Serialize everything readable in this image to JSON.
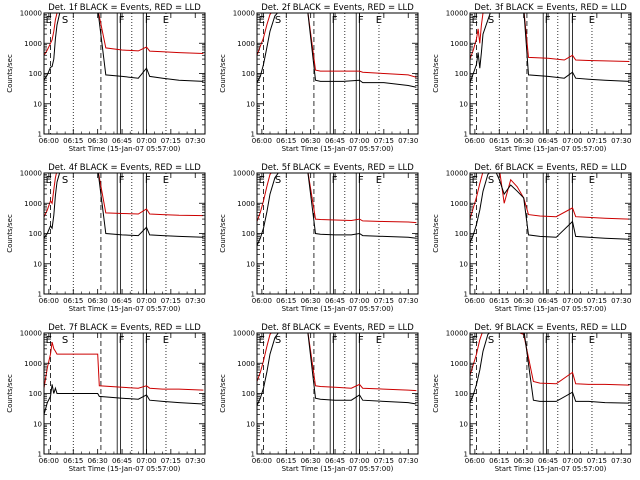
{
  "figure": {
    "x_tick_labels": [
      "06:00",
      "06:15",
      "06:30",
      "06:45",
      "07:00",
      "07:15",
      "07:30"
    ],
    "y_tick_labels": [
      "1",
      "10",
      "100",
      "1000",
      "10000"
    ],
    "ylabel": "Counts/sec",
    "xlabel": "Start Time (15-Jan-07 05:57:00)"
  },
  "chart_data": [
    {
      "type": "line",
      "title": "Det. 1f BLACK = Events, RED = LLD",
      "xlabel": "Start Time (15-Jan-07 05:57:00)",
      "ylabel": "Counts/sec",
      "y_scale": "log",
      "ylim": [
        1,
        10000
      ],
      "xlim": [
        "05:57",
        "07:36"
      ],
      "markers": [
        "E",
        "S",
        "F",
        "F",
        "E"
      ],
      "series": [
        {
          "name": "Events",
          "color": "#000000",
          "x": [
            "05:57",
            "05:59",
            "06:01",
            "06:02",
            "06:03",
            "06:04",
            "06:05",
            "06:07",
            "06:10",
            "06:15",
            "06:20",
            "06:25",
            "06:30",
            "06:35",
            "06:45",
            "06:55",
            "07:00",
            "07:02",
            "07:10",
            "07:20",
            "07:35"
          ],
          "y": [
            60,
            90,
            160,
            170,
            300,
            1400,
            4000,
            12000,
            14000,
            14000,
            14000,
            14000,
            14000,
            90,
            80,
            70,
            150,
            80,
            70,
            60,
            55
          ]
        },
        {
          "name": "LLD",
          "color": "#cc0000",
          "x": [
            "05:57",
            "05:59",
            "06:01",
            "06:02",
            "06:03",
            "06:04",
            "06:05",
            "06:07",
            "06:10",
            "06:15",
            "06:20",
            "06:25",
            "06:30",
            "06:35",
            "06:45",
            "06:55",
            "07:00",
            "07:02",
            "07:10",
            "07:20",
            "07:35"
          ],
          "y": [
            400,
            600,
            1000,
            1300,
            2500,
            6000,
            10000,
            14000,
            14000,
            14000,
            14000,
            14000,
            14000,
            700,
            600,
            560,
            750,
            550,
            520,
            490,
            460
          ]
        }
      ]
    },
    {
      "type": "line",
      "title": "Det. 2f BLACK = Events, RED = LLD",
      "xlabel": "Start Time (15-Jan-07 05:57:00)",
      "ylabel": "Counts/sec",
      "y_scale": "log",
      "ylim": [
        1,
        10000
      ],
      "xlim": [
        "05:57",
        "07:36"
      ],
      "markers": [
        "E",
        "S",
        "F",
        "F",
        "E"
      ],
      "series": [
        {
          "name": "Events",
          "color": "#000000",
          "x": [
            "05:57",
            "05:59",
            "06:01",
            "06:03",
            "06:05",
            "06:08",
            "06:12",
            "06:20",
            "06:28",
            "06:33",
            "06:36",
            "06:40",
            "06:50",
            "07:00",
            "07:02",
            "07:15",
            "07:30",
            "07:35"
          ],
          "y": [
            50,
            80,
            200,
            700,
            2500,
            8000,
            14000,
            14000,
            14000,
            60,
            55,
            55,
            55,
            60,
            50,
            50,
            40,
            35
          ]
        },
        {
          "name": "LLD",
          "color": "#cc0000",
          "x": [
            "05:57",
            "05:59",
            "06:01",
            "06:03",
            "06:05",
            "06:08",
            "06:12",
            "06:20",
            "06:28",
            "06:33",
            "06:36",
            "06:40",
            "06:50",
            "07:00",
            "07:02",
            "07:15",
            "07:30",
            "07:35"
          ],
          "y": [
            400,
            800,
            1500,
            4000,
            9000,
            14000,
            14000,
            14000,
            14000,
            130,
            120,
            120,
            120,
            120,
            110,
            100,
            90,
            75
          ]
        }
      ]
    },
    {
      "type": "line",
      "title": "Det. 3f BLACK = Events, RED = LLD",
      "xlabel": "Start Time (15-Jan-07 05:57:00)",
      "ylabel": "Counts/sec",
      "y_scale": "log",
      "ylim": [
        1,
        10000
      ],
      "xlim": [
        "05:57",
        "07:36"
      ],
      "markers": [
        "E",
        "S",
        "F",
        "F",
        "E"
      ],
      "series": [
        {
          "name": "Events",
          "color": "#000000",
          "x": [
            "05:57",
            "05:59",
            "06:01",
            "06:02",
            "06:03",
            "06:04",
            "06:05",
            "06:10",
            "06:20",
            "06:30",
            "06:33",
            "06:45",
            "06:55",
            "07:00",
            "07:02",
            "07:10",
            "07:20",
            "07:35"
          ],
          "y": [
            50,
            100,
            200,
            500,
            150,
            500,
            2000,
            12000,
            14000,
            14000,
            90,
            80,
            70,
            110,
            70,
            65,
            60,
            55
          ]
        },
        {
          "name": "LLD",
          "color": "#cc0000",
          "x": [
            "05:57",
            "05:59",
            "06:01",
            "06:02",
            "06:03",
            "06:04",
            "06:05",
            "06:10",
            "06:20",
            "06:30",
            "06:33",
            "06:45",
            "06:55",
            "07:00",
            "07:02",
            "07:10",
            "07:20",
            "07:35"
          ],
          "y": [
            300,
            600,
            1400,
            3000,
            1000,
            4000,
            10000,
            14000,
            14000,
            14000,
            340,
            320,
            280,
            400,
            280,
            270,
            260,
            250
          ]
        }
      ]
    },
    {
      "type": "line",
      "title": "Det. 4f BLACK = Events, RED = LLD",
      "xlabel": "Start Time (15-Jan-07 05:57:00)",
      "ylabel": "Counts/sec",
      "y_scale": "log",
      "ylim": [
        1,
        10000
      ],
      "xlim": [
        "05:57",
        "07:36"
      ],
      "markers": [
        "E",
        "S",
        "F",
        "F",
        "E"
      ],
      "series": [
        {
          "name": "Events",
          "color": "#000000",
          "x": [
            "05:57",
            "05:59",
            "06:01",
            "06:02",
            "06:03",
            "06:04",
            "06:05",
            "06:07",
            "06:10",
            "06:20",
            "06:30",
            "06:35",
            "06:45",
            "06:55",
            "07:00",
            "07:02",
            "07:10",
            "07:20",
            "07:35"
          ],
          "y": [
            70,
            100,
            180,
            150,
            400,
            1800,
            5000,
            12000,
            14000,
            14000,
            14000,
            100,
            90,
            85,
            160,
            90,
            85,
            80,
            75
          ]
        },
        {
          "name": "LLD",
          "color": "#cc0000",
          "x": [
            "05:57",
            "05:59",
            "06:01",
            "06:02",
            "06:03",
            "06:04",
            "06:05",
            "06:07",
            "06:10",
            "06:20",
            "06:30",
            "06:35",
            "06:45",
            "06:55",
            "07:00",
            "07:02",
            "07:10",
            "07:20",
            "07:35"
          ],
          "y": [
            350,
            600,
            1200,
            1000,
            2800,
            7000,
            12000,
            14000,
            14000,
            14000,
            14000,
            480,
            460,
            440,
            650,
            440,
            420,
            400,
            390
          ]
        }
      ]
    },
    {
      "type": "line",
      "title": "Det. 5f BLACK = Events, RED = LLD",
      "xlabel": "Start Time (15-Jan-07 05:57:00)",
      "ylabel": "Counts/sec",
      "y_scale": "log",
      "ylim": [
        1,
        10000
      ],
      "xlim": [
        "05:57",
        "07:36"
      ],
      "markers": [
        "E",
        "S",
        "F",
        "F",
        "E"
      ],
      "series": [
        {
          "name": "Events",
          "color": "#000000",
          "x": [
            "05:57",
            "05:59",
            "06:01",
            "06:03",
            "06:05",
            "06:08",
            "06:12",
            "06:20",
            "06:28",
            "06:33",
            "06:36",
            "06:45",
            "06:55",
            "07:00",
            "07:02",
            "07:15",
            "07:30",
            "07:35"
          ],
          "y": [
            40,
            70,
            150,
            500,
            2000,
            7000,
            14000,
            14000,
            14000,
            100,
            95,
            90,
            90,
            100,
            85,
            80,
            75,
            70
          ]
        },
        {
          "name": "LLD",
          "color": "#cc0000",
          "x": [
            "05:57",
            "05:59",
            "06:01",
            "06:03",
            "06:05",
            "06:08",
            "06:12",
            "06:20",
            "06:28",
            "06:33",
            "06:36",
            "06:45",
            "06:55",
            "07:00",
            "07:02",
            "07:15",
            "07:30",
            "07:35"
          ],
          "y": [
            250,
            500,
            1200,
            3500,
            9000,
            14000,
            14000,
            14000,
            14000,
            300,
            290,
            280,
            270,
            300,
            260,
            250,
            240,
            230
          ]
        }
      ]
    },
    {
      "type": "line",
      "title": "Det. 6f BLACK = Events, RED = LLD",
      "xlabel": "Start Time (15-Jan-07 05:57:00)",
      "ylabel": "Counts/sec",
      "y_scale": "log",
      "ylim": [
        1,
        10000
      ],
      "xlim": [
        "05:57",
        "07:36"
      ],
      "markers": [
        "E",
        "S",
        "F",
        "F",
        "E"
      ],
      "series": [
        {
          "name": "Events",
          "color": "#000000",
          "x": [
            "05:57",
            "05:59",
            "06:01",
            "06:03",
            "06:05",
            "06:08",
            "06:12",
            "06:15",
            "06:18",
            "06:22",
            "06:26",
            "06:30",
            "06:33",
            "06:40",
            "06:50",
            "07:00",
            "07:02",
            "07:10",
            "07:20",
            "07:35"
          ],
          "y": [
            50,
            90,
            200,
            600,
            2500,
            9000,
            14000,
            6000,
            2000,
            4000,
            2500,
            1500,
            90,
            80,
            75,
            250,
            80,
            75,
            70,
            65
          ]
        },
        {
          "name": "LLD",
          "color": "#cc0000",
          "x": [
            "05:57",
            "05:59",
            "06:01",
            "06:03",
            "06:05",
            "06:08",
            "06:12",
            "06:15",
            "06:18",
            "06:22",
            "06:26",
            "06:30",
            "06:33",
            "06:40",
            "06:50",
            "07:00",
            "07:02",
            "07:10",
            "07:20",
            "07:35"
          ],
          "y": [
            300,
            700,
            1600,
            4500,
            11000,
            14000,
            14000,
            14000,
            1000,
            6000,
            3500,
            1500,
            420,
            380,
            360,
            700,
            360,
            340,
            320,
            300
          ]
        }
      ]
    },
    {
      "type": "line",
      "title": "Det. 7f BLACK = Events, RED = LLD",
      "xlabel": "Start Time (15-Jan-07 05:57:00)",
      "ylabel": "Counts/sec",
      "y_scale": "log",
      "ylim": [
        1,
        10000
      ],
      "xlim": [
        "05:57",
        "07:36"
      ],
      "markers": [
        "E",
        "S",
        "F",
        "F",
        "E"
      ],
      "series": [
        {
          "name": "Events",
          "color": "#000000",
          "x": [
            "05:57",
            "05:59",
            "06:01",
            "06:02",
            "06:03",
            "06:04",
            "06:05",
            "06:30",
            "06:31",
            "06:45",
            "06:55",
            "07:00",
            "07:02",
            "07:10",
            "07:20",
            "07:35"
          ],
          "y": [
            20,
            50,
            80,
            200,
            100,
            150,
            100,
            100,
            80,
            70,
            65,
            90,
            60,
            55,
            50,
            45
          ]
        },
        {
          "name": "LLD",
          "color": "#cc0000",
          "x": [
            "05:57",
            "05:59",
            "06:01",
            "06:02",
            "06:03",
            "06:04",
            "06:05",
            "06:30",
            "06:31",
            "06:45",
            "06:55",
            "07:00",
            "07:02",
            "07:10",
            "07:20",
            "07:35"
          ],
          "y": [
            150,
            700,
            2000,
            5000,
            3000,
            2500,
            2000,
            2000,
            180,
            160,
            150,
            180,
            150,
            140,
            140,
            130
          ]
        }
      ]
    },
    {
      "type": "line",
      "title": "Det. 8f BLACK = Events, RED = LLD",
      "xlabel": "Start Time (15-Jan-07 05:57:00)",
      "ylabel": "Counts/sec",
      "y_scale": "log",
      "ylim": [
        1,
        10000
      ],
      "xlim": [
        "05:57",
        "07:36"
      ],
      "markers": [
        "E",
        "S",
        "F",
        "F",
        "E"
      ],
      "series": [
        {
          "name": "Events",
          "color": "#000000",
          "x": [
            "05:57",
            "05:59",
            "06:01",
            "06:03",
            "06:05",
            "06:08",
            "06:12",
            "06:20",
            "06:28",
            "06:33",
            "06:36",
            "06:45",
            "06:55",
            "07:00",
            "07:02",
            "07:15",
            "07:30",
            "07:35"
          ],
          "y": [
            40,
            70,
            150,
            500,
            2000,
            7000,
            14000,
            14000,
            14000,
            70,
            65,
            60,
            60,
            90,
            60,
            55,
            50,
            45
          ]
        },
        {
          "name": "LLD",
          "color": "#cc0000",
          "x": [
            "05:57",
            "05:59",
            "06:01",
            "06:03",
            "06:05",
            "06:08",
            "06:12",
            "06:20",
            "06:28",
            "06:33",
            "06:36",
            "06:45",
            "06:55",
            "07:00",
            "07:02",
            "07:15",
            "07:30",
            "07:35"
          ],
          "y": [
            250,
            500,
            1200,
            3500,
            9000,
            14000,
            14000,
            14000,
            14000,
            180,
            170,
            160,
            150,
            200,
            150,
            140,
            130,
            125
          ]
        }
      ]
    },
    {
      "type": "line",
      "title": "Det. 9f BLACK = Events, RED = LLD",
      "xlabel": "Start Time (15-Jan-07 05:57:00)",
      "ylabel": "Counts/sec",
      "y_scale": "log",
      "ylim": [
        1,
        10000
      ],
      "xlim": [
        "05:57",
        "07:36"
      ],
      "markers": [
        "E",
        "S",
        "F",
        "F",
        "E"
      ],
      "series": [
        {
          "name": "Events",
          "color": "#000000",
          "x": [
            "05:57",
            "05:59",
            "06:01",
            "06:03",
            "06:05",
            "06:08",
            "06:12",
            "06:20",
            "06:30",
            "06:36",
            "06:40",
            "06:50",
            "07:00",
            "07:02",
            "07:10",
            "07:20",
            "07:35"
          ],
          "y": [
            50,
            90,
            200,
            600,
            2500,
            9000,
            14000,
            14000,
            14000,
            60,
            55,
            55,
            110,
            55,
            55,
            50,
            48
          ]
        },
        {
          "name": "LLD",
          "color": "#cc0000",
          "x": [
            "05:57",
            "05:59",
            "06:01",
            "06:03",
            "06:05",
            "06:08",
            "06:12",
            "06:20",
            "06:30",
            "06:36",
            "06:40",
            "06:50",
            "07:00",
            "07:02",
            "07:10",
            "07:20",
            "07:35"
          ],
          "y": [
            400,
            900,
            2000,
            6000,
            12000,
            14000,
            14000,
            14000,
            9000,
            250,
            220,
            210,
            500,
            210,
            200,
            200,
            190
          ]
        }
      ]
    }
  ]
}
